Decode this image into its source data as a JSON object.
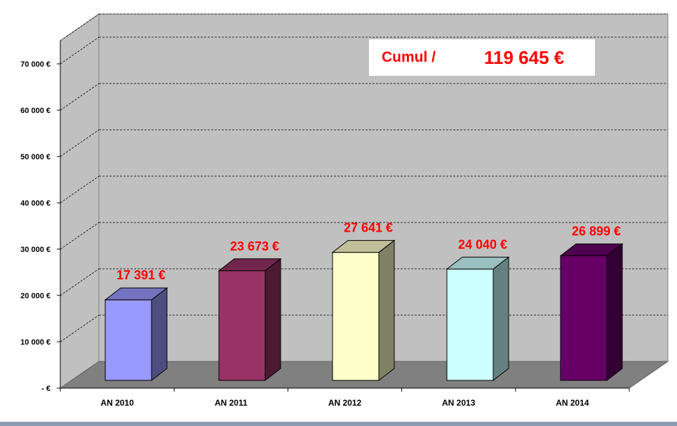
{
  "chart_data": {
    "type": "bar",
    "categories": [
      "AN 2010",
      "AN 2011",
      "AN 2012",
      "AN 2013",
      "AN 2014"
    ],
    "values": [
      17391,
      23673,
      27641,
      24040,
      26899
    ],
    "value_labels": [
      "17 391 €",
      "23 673 €",
      "27 641 €",
      "24 040 €",
      "26 899 €"
    ],
    "bar_colors": [
      "#9999ff",
      "#993366",
      "#ffffcc",
      "#ccffff",
      "#660066"
    ],
    "ylim": [
      0,
      70000
    ],
    "yticks": [
      0,
      10000,
      20000,
      30000,
      40000,
      50000,
      60000,
      70000
    ],
    "ytick_labels": [
      "-   €",
      "10 000 €",
      "20 000 €",
      "30 000 €",
      "40 000 €",
      "50 000 €",
      "60 000 €",
      "70 000 €"
    ],
    "grid": true,
    "three_d": true,
    "title": "",
    "xlabel": "",
    "ylabel": "",
    "annotation": {
      "label": "Cumul /",
      "value": "119 645 €"
    }
  },
  "colors": {
    "data_label": "#ff0000",
    "wall": "#c0c0c0",
    "floor": "#808080",
    "grid": "#000000"
  }
}
